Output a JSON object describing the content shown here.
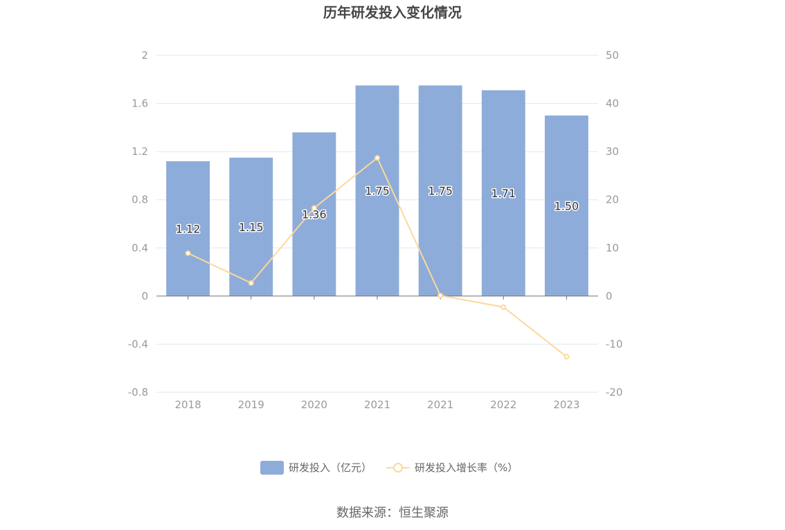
{
  "chart_data": {
    "type": "bar",
    "title": "历年研发投入变化情况",
    "categories": [
      "2018",
      "2019",
      "2020",
      "2021",
      "2021",
      "2022",
      "2023"
    ],
    "series": [
      {
        "name": "研发投入（亿元）",
        "type": "bar",
        "axis": "left",
        "values": [
          1.12,
          1.15,
          1.36,
          1.75,
          1.75,
          1.71,
          1.5
        ],
        "labels": [
          "1.12",
          "1.15",
          "1.36",
          "1.75",
          "1.75",
          "1.71",
          "1.50"
        ],
        "color": "#8eacd9"
      },
      {
        "name": "研发投入增长率（%）",
        "type": "line",
        "axis": "right",
        "values": [
          8.9,
          2.7,
          18.3,
          28.7,
          0.1,
          -2.3,
          -12.6
        ],
        "color": "#fcd89a"
      }
    ],
    "y_left": {
      "min": -0.8,
      "max": 2,
      "ticks": [
        "2",
        "1.6",
        "1.2",
        "0.8",
        "0.4",
        "0",
        "-0.4",
        "-0.8"
      ]
    },
    "y_right": {
      "min": -20,
      "max": 50,
      "ticks": [
        "50",
        "40",
        "30",
        "20",
        "10",
        "0",
        "-10",
        "-20"
      ]
    },
    "grid": true,
    "legend_position": "bottom-center"
  },
  "source": "数据来源：恒生聚源"
}
